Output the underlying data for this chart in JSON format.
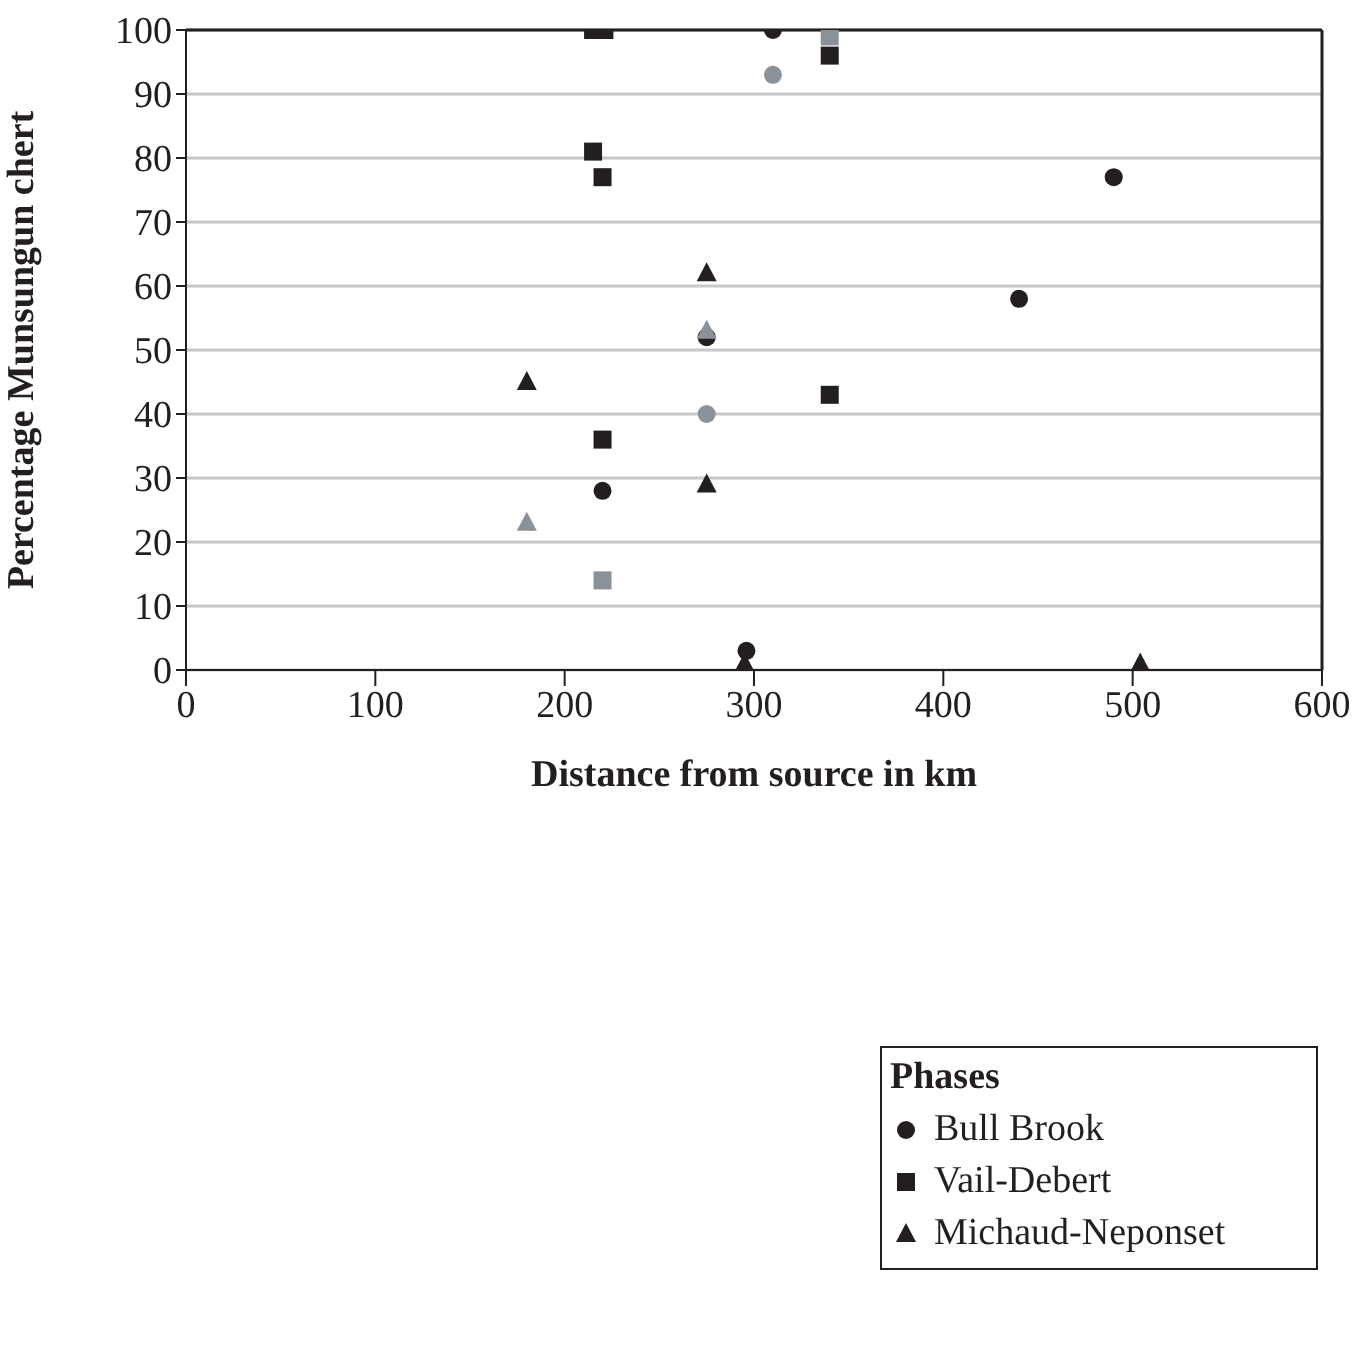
{
  "chart_data": {
    "type": "scatter",
    "xlabel": "Distance from source in km",
    "ylabel": "Percentage Munsungun chert",
    "legend_title": "Phases",
    "xlim": [
      0,
      600
    ],
    "xticks": [
      0,
      100,
      200,
      300,
      400,
      500,
      600
    ],
    "ylim": [
      0,
      100
    ],
    "yticks": [
      0,
      10,
      20,
      30,
      40,
      50,
      60,
      70,
      80,
      90,
      100
    ],
    "grid": "y",
    "legend": "bottom right",
    "series": [
      {
        "name": "Bull Brook",
        "color": "#231f20",
        "marker": "circle",
        "x": [
          310,
          310,
          490,
          440,
          275,
          275,
          220,
          296
        ],
        "values": [
          100,
          93,
          77,
          58,
          52,
          40,
          28,
          3
        ],
        "colors": [
          "#231f20",
          "#8a9199",
          "#231f20",
          "#231f20",
          "#231f20",
          "#8a9199",
          "#231f20",
          "#231f20"
        ]
      },
      {
        "name": "Vail-Debert",
        "color": "#231f20",
        "marker": "square",
        "x": [
          215,
          221,
          215,
          220,
          340,
          340,
          340,
          220,
          220
        ],
        "values": [
          100,
          100,
          81,
          77,
          99,
          96,
          43,
          36,
          14
        ],
        "colors": [
          "#231f20",
          "#231f20",
          "#231f20",
          "#231f20",
          "#8a9199",
          "#231f20",
          "#231f20",
          "#231f20",
          "#8a9199"
        ]
      },
      {
        "name": "Michaud-Neponset",
        "color": "#231f20",
        "marker": "triangle",
        "x": [
          275,
          275,
          180,
          275,
          180,
          295,
          504
        ],
        "values": [
          62,
          53,
          45,
          29,
          23,
          1,
          1
        ],
        "colors": [
          "#231f20",
          "#8a9199",
          "#231f20",
          "#231f20",
          "#8a9199",
          "#231f20",
          "#231f20"
        ]
      }
    ]
  }
}
